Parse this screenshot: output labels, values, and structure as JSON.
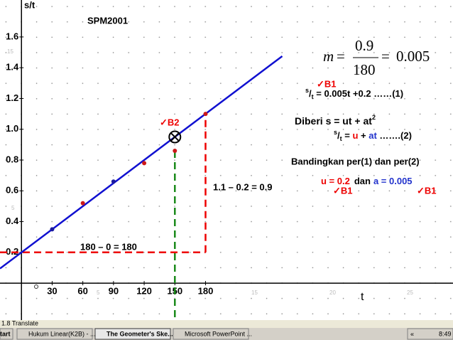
{
  "chart_data": {
    "type": "scatter",
    "title": "SPM2001",
    "y_label": "s/t",
    "x_label": "t",
    "x": [
      30,
      60,
      90,
      120,
      150,
      180
    ],
    "values": [
      0.35,
      0.52,
      0.66,
      0.78,
      0.86,
      1.1
    ],
    "colors": [
      "#1a1aa0",
      "#cc1a1a",
      "#1a1aa0",
      "#cc1a1a",
      "#cc1a1a",
      "#cc1a1a"
    ],
    "fit_line": {
      "x": [
        -21,
        255
      ],
      "values": [
        0.095,
        1.475
      ],
      "color": "#1010d0"
    },
    "xlim": [
      -21,
      422
    ],
    "ylim": [
      -0.24,
      1.84
    ],
    "xticks": [
      30,
      60,
      90,
      120,
      150,
      180
    ],
    "yticks": [
      0.2,
      0.4,
      0.6,
      0.8,
      {
        "value": 1,
        "label": "1.0"
      },
      1.2,
      1.4,
      1.6
    ]
  },
  "sketch_scale": [
    "15",
    "5",
    "5",
    "15",
    "20",
    "25"
  ],
  "annotations": {
    "gradient": {
      "m": "m",
      "eq1": "=",
      "num": "0.9",
      "den": "180",
      "eq2": "=",
      "result": "0.005"
    },
    "check_b1": "✓B1",
    "eq1": {
      "sup": "s",
      "slash": "/",
      "sub": "t",
      "rest": " = 0.005t +0.2 ……(1)"
    },
    "given": {
      "text": "Diberi s = ut + at",
      "sup": "2"
    },
    "eq2": {
      "sup": "s",
      "slash": "/",
      "sub": "t",
      "eq": " = ",
      "u": "u",
      "plus": " + ",
      "at": "at",
      "rest": " …….(2)"
    },
    "compare": "Bandingkan per(1) dan per(2)",
    "result": {
      "u": "u = 0.2",
      "dan": "dan",
      "a": "a = 0.005"
    },
    "check_u": "✓B1",
    "check_a": "✓B1",
    "check_b2": "✓B2",
    "rise": "1.1 – 0.2 = 0.9",
    "run": "180 – 0 = 180"
  },
  "status_bar": "1.8 Translate",
  "taskbar": {
    "start": "tart",
    "items": [
      "Hukum Linear(K2B) - ...",
      "The Geometer's Ske...",
      "Microsoft PowerPoint ..."
    ],
    "tray_arrow": "«",
    "clock": "8:49"
  }
}
